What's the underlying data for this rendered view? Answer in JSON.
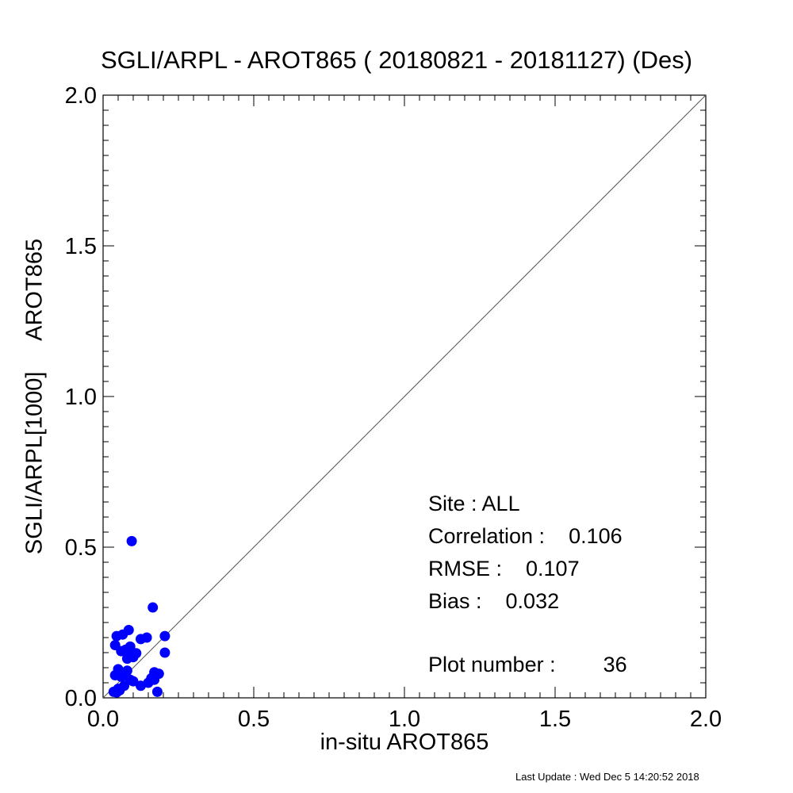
{
  "chart_data": {
    "type": "scatter",
    "title": "SGLI/ARPL - AROT865 ( 20180821 - 20181127) (Des)",
    "xlabel": "in-situ AROT865",
    "ylabel": "SGLI/ARPL[1000]     AROT865",
    "xlim": [
      0.0,
      2.0
    ],
    "ylim": [
      0.0,
      2.0
    ],
    "x_ticks": [
      "0.0",
      "0.5",
      "1.0",
      "1.5",
      "2.0"
    ],
    "y_ticks": [
      "0.0",
      "0.5",
      "1.0",
      "1.5",
      "2.0"
    ],
    "reference_line": "1:1",
    "point_color": "#0000ff",
    "points": [
      {
        "x": 0.095,
        "y": 0.52
      },
      {
        "x": 0.165,
        "y": 0.3
      },
      {
        "x": 0.085,
        "y": 0.225
      },
      {
        "x": 0.065,
        "y": 0.21
      },
      {
        "x": 0.045,
        "y": 0.205
      },
      {
        "x": 0.205,
        "y": 0.205
      },
      {
        "x": 0.145,
        "y": 0.2
      },
      {
        "x": 0.125,
        "y": 0.195
      },
      {
        "x": 0.04,
        "y": 0.175
      },
      {
        "x": 0.09,
        "y": 0.17
      },
      {
        "x": 0.075,
        "y": 0.16
      },
      {
        "x": 0.06,
        "y": 0.155
      },
      {
        "x": 0.205,
        "y": 0.15
      },
      {
        "x": 0.11,
        "y": 0.148
      },
      {
        "x": 0.09,
        "y": 0.14
      },
      {
        "x": 0.1,
        "y": 0.135
      },
      {
        "x": 0.08,
        "y": 0.13
      },
      {
        "x": 0.05,
        "y": 0.095
      },
      {
        "x": 0.08,
        "y": 0.09
      },
      {
        "x": 0.17,
        "y": 0.085
      },
      {
        "x": 0.185,
        "y": 0.08
      },
      {
        "x": 0.04,
        "y": 0.075
      },
      {
        "x": 0.075,
        "y": 0.075
      },
      {
        "x": 0.06,
        "y": 0.07
      },
      {
        "x": 0.16,
        "y": 0.065
      },
      {
        "x": 0.09,
        "y": 0.06
      },
      {
        "x": 0.17,
        "y": 0.06
      },
      {
        "x": 0.1,
        "y": 0.055
      },
      {
        "x": 0.15,
        "y": 0.05
      },
      {
        "x": 0.125,
        "y": 0.04
      },
      {
        "x": 0.07,
        "y": 0.04
      },
      {
        "x": 0.05,
        "y": 0.03
      },
      {
        "x": 0.055,
        "y": 0.025
      },
      {
        "x": 0.035,
        "y": 0.02
      },
      {
        "x": 0.045,
        "y": 0.018
      },
      {
        "x": 0.18,
        "y": 0.02
      }
    ]
  },
  "stats": {
    "site": "Site : ALL",
    "correlation": "Correlation :    0.106",
    "rmse": "RMSE :    0.107",
    "bias": "Bias :    0.032",
    "plot_number": "Plot number :        36"
  },
  "footer": "Last Update : Wed Dec  5 14:20:52 2018"
}
